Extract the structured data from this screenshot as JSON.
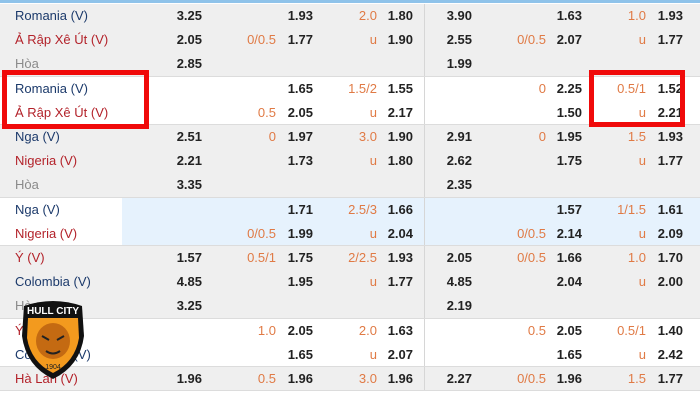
{
  "colors": {
    "home": "#1c3a6b",
    "away": "#b3222a",
    "draw": "#8a8a8a",
    "line": "#e07a45",
    "highlight": "#f00a0a"
  },
  "blocks": [
    {
      "bg": "#efefef",
      "rows": [
        {
          "type": "home",
          "cells": [
            "Romania (V)",
            "3.25",
            "",
            "1.93",
            "2.0",
            "1.80",
            "3.90",
            "",
            "1.63",
            "1.0",
            "1.93"
          ]
        },
        {
          "type": "away",
          "cells": [
            "Ả Rập Xê Út (V)",
            "2.05",
            "0/0.5",
            "1.77",
            "u",
            "1.90",
            "2.55",
            "0/0.5",
            "2.07",
            "u",
            "1.77"
          ]
        },
        {
          "type": "draw",
          "cells": [
            "Hòa",
            "2.85",
            "",
            "",
            "",
            "",
            "1.99",
            "",
            "",
            "",
            ""
          ]
        }
      ]
    },
    {
      "bg": "#ffffff",
      "rows": [
        {
          "type": "home",
          "cells": [
            "Romania (V)",
            "",
            "",
            "1.65",
            "1.5/2",
            "1.55",
            "",
            "0",
            "2.25",
            "0.5/1",
            "1.52"
          ]
        },
        {
          "type": "away",
          "cells": [
            "Ả Rập Xê Út (V)",
            "",
            "0.5",
            "2.05",
            "u",
            "2.17",
            "",
            "",
            "1.50",
            "u",
            "2.21"
          ]
        }
      ]
    },
    {
      "bg": "#efefef",
      "rows": [
        {
          "type": "home",
          "cells": [
            "Nga (V)",
            "2.51",
            "0",
            "1.97",
            "3.0",
            "1.90",
            "2.91",
            "0",
            "1.95",
            "1.5",
            "1.93"
          ]
        },
        {
          "type": "away",
          "cells": [
            "Nigeria (V)",
            "2.21",
            "",
            "1.73",
            "u",
            "1.80",
            "2.62",
            "",
            "1.75",
            "u",
            "1.77"
          ]
        },
        {
          "type": "draw",
          "cells": [
            "Hòa",
            "3.35",
            "",
            "",
            "",
            "",
            "2.35",
            "",
            "",
            "",
            ""
          ]
        }
      ]
    },
    {
      "bg": "#ffffff",
      "band": true,
      "rows": [
        {
          "type": "home",
          "cells": [
            "Nga (V)",
            "",
            "",
            "1.71",
            "2.5/3",
            "1.66",
            "",
            "",
            "1.57",
            "1/1.5",
            "1.61"
          ]
        },
        {
          "type": "away",
          "cells": [
            "Nigeria (V)",
            "",
            "0/0.5",
            "1.99",
            "u",
            "2.04",
            "",
            "0/0.5",
            "2.14",
            "u",
            "2.09"
          ]
        }
      ]
    },
    {
      "bg": "#efefef",
      "rows": [
        {
          "type": "away",
          "cells": [
            "Ý (V)",
            "1.57",
            "0.5/1",
            "1.75",
            "2/2.5",
            "1.93",
            "2.05",
            "0/0.5",
            "1.66",
            "1.0",
            "1.70"
          ]
        },
        {
          "type": "home",
          "cells": [
            "Colombia (V)",
            "4.85",
            "",
            "1.95",
            "u",
            "1.77",
            "4.85",
            "",
            "2.04",
            "u",
            "2.00"
          ]
        },
        {
          "type": "draw",
          "cells": [
            "Hòa",
            "3.25",
            "",
            "",
            "",
            "",
            "2.19",
            "",
            "",
            "",
            ""
          ]
        }
      ]
    },
    {
      "bg": "#ffffff",
      "rows": [
        {
          "type": "away",
          "cells": [
            "Ý (V)",
            "",
            "1.0",
            "2.05",
            "2.0",
            "1.63",
            "",
            "0.5",
            "2.05",
            "0.5/1",
            "1.40"
          ]
        },
        {
          "type": "home",
          "cells": [
            "Colombia (V)",
            "",
            "",
            "1.65",
            "u",
            "2.07",
            "",
            "",
            "1.65",
            "u",
            "2.42"
          ]
        }
      ]
    },
    {
      "bg": "#efefef",
      "rows": [
        {
          "type": "away",
          "cells": [
            "Hà Lan (V)",
            "1.96",
            "0.5",
            "1.96",
            "3.0",
            "1.96",
            "2.27",
            "0/0.5",
            "1.96",
            "1.5",
            "1.77"
          ]
        }
      ]
    }
  ],
  "logo": {
    "text": "HULL CITY",
    "year": "1904"
  }
}
